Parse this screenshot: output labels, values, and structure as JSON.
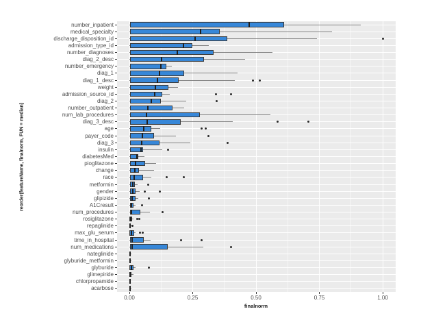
{
  "chart_data": {
    "type": "boxplot",
    "orientation": "horizontal",
    "xlabel": "finalnorm",
    "ylabel": "reorder(featureName, finalnorm, FUN = median)",
    "xlim": [
      -0.05,
      1.05
    ],
    "x_major_ticks": [
      0.0,
      0.25,
      0.5,
      0.75,
      1.0
    ],
    "x_tick_labels": [
      "0.00",
      "0.25",
      "0.50",
      "0.75",
      "1.00"
    ],
    "x_minor_ticks": [
      0.125,
      0.375,
      0.625,
      0.875
    ],
    "grid": "on",
    "legend": "none",
    "sort_order": "median descending (top to bottom)",
    "boxes": [
      {
        "name": "number_inpatient",
        "low": 0,
        "q1": 0.003,
        "median": 0.473,
        "q3": 0.611,
        "high": 0.913,
        "outliers": []
      },
      {
        "name": "medical_specialty",
        "low": 0,
        "q1": 0.003,
        "median": 0.281,
        "q3": 0.357,
        "high": 0.8,
        "outliers": []
      },
      {
        "name": "discharge_disposition_id",
        "low": 0,
        "q1": 0.003,
        "median": 0.259,
        "q3": 0.386,
        "high": 0.74,
        "outliers": [
          1.0
        ]
      },
      {
        "name": "admission_type_id",
        "low": 0,
        "q1": 0.003,
        "median": 0.214,
        "q3": 0.248,
        "high": 0.314,
        "outliers": []
      },
      {
        "name": "number_diagnoses",
        "low": 0,
        "q1": 0.003,
        "median": 0.189,
        "q3": 0.332,
        "high": 0.565,
        "outliers": []
      },
      {
        "name": "diag_2_desc",
        "low": 0,
        "q1": 0.003,
        "median": 0.127,
        "q3": 0.295,
        "high": 0.457,
        "outliers": []
      },
      {
        "name": "number_emergency",
        "low": 0,
        "q1": 0.003,
        "median": 0.123,
        "q3": 0.147,
        "high": 0.167,
        "outliers": []
      },
      {
        "name": "diag_1",
        "low": 0,
        "q1": 0.003,
        "median": 0.118,
        "q3": 0.216,
        "high": 0.428,
        "outliers": []
      },
      {
        "name": "diag_1_desc",
        "low": 0,
        "q1": 0.003,
        "median": 0.111,
        "q3": 0.195,
        "high": 0.417,
        "outliers": [
          0.487,
          0.514
        ]
      },
      {
        "name": "weight",
        "low": 0,
        "q1": 0.003,
        "median": 0.104,
        "q3": 0.155,
        "high": 0.192,
        "outliers": []
      },
      {
        "name": "admission_source_id",
        "low": 0,
        "q1": 0.003,
        "median": 0.099,
        "q3": 0.129,
        "high": 0.159,
        "outliers": [
          0.341,
          0.402
        ]
      },
      {
        "name": "diag_2",
        "low": 0,
        "q1": 0.003,
        "median": 0.086,
        "q3": 0.124,
        "high": 0.225,
        "outliers": [
          0.345
        ]
      },
      {
        "name": "number_outpatient",
        "low": 0,
        "q1": 0.003,
        "median": 0.073,
        "q3": 0.17,
        "high": 0.215,
        "outliers": []
      },
      {
        "name": "num_lab_procedures",
        "low": 0,
        "q1": 0.003,
        "median": 0.068,
        "q3": 0.278,
        "high": 0.557,
        "outliers": []
      },
      {
        "name": "diag_3_desc",
        "low": 0,
        "q1": 0.003,
        "median": 0.07,
        "q3": 0.203,
        "high": 0.408,
        "outliers": [
          0.584,
          0.708
        ]
      },
      {
        "name": "age",
        "low": 0,
        "q1": 0.003,
        "median": 0.057,
        "q3": 0.086,
        "high": 0.122,
        "outliers": [
          0.286,
          0.301
        ]
      },
      {
        "name": "payer_code",
        "low": 0,
        "q1": 0.003,
        "median": 0.051,
        "q3": 0.097,
        "high": 0.184,
        "outliers": [
          0.311
        ]
      },
      {
        "name": "diag_3",
        "low": 0,
        "q1": 0.003,
        "median": 0.049,
        "q3": 0.119,
        "high": 0.241,
        "outliers": [
          0.388
        ]
      },
      {
        "name": "insulin",
        "low": 0,
        "q1": 0.003,
        "median": 0.046,
        "q3": 0.054,
        "high": 0.13,
        "outliers": [
          0.154
        ]
      },
      {
        "name": "diabetesMed",
        "low": 0,
        "q1": 0.003,
        "median": 0.03,
        "q3": 0.035,
        "high": 0.06,
        "outliers": []
      },
      {
        "name": "pioglitazone",
        "low": 0,
        "q1": 0.003,
        "median": 0.025,
        "q3": 0.063,
        "high": 0.106,
        "outliers": []
      },
      {
        "name": "change",
        "low": 0,
        "q1": 0.003,
        "median": 0.022,
        "q3": 0.039,
        "high": 0.097,
        "outliers": []
      },
      {
        "name": "race",
        "low": 0,
        "q1": 0.003,
        "median": 0.019,
        "q3": 0.055,
        "high": 0.086,
        "outliers": [
          0.146,
          0.214
        ]
      },
      {
        "name": "metformin",
        "low": 0,
        "q1": 0.002,
        "median": 0.014,
        "q3": 0.022,
        "high": 0.032,
        "outliers": [
          0.073
        ]
      },
      {
        "name": "gender",
        "low": 0,
        "q1": 0.002,
        "median": 0.014,
        "q3": 0.024,
        "high": 0.041,
        "outliers": [
          0.062,
          0.119
        ]
      },
      {
        "name": "glipizide",
        "low": 0,
        "q1": 0.002,
        "median": 0.012,
        "q3": 0.025,
        "high": 0.035,
        "outliers": [
          0.076
        ]
      },
      {
        "name": "A1Cresult",
        "low": 0,
        "q1": 0.002,
        "median": 0.009,
        "q3": 0.015,
        "high": 0.025,
        "outliers": [
          0.049
        ]
      },
      {
        "name": "num_procedures",
        "low": 0,
        "q1": 0.002,
        "median": 0.008,
        "q3": 0.044,
        "high": 0.081,
        "outliers": [
          0.132
        ]
      },
      {
        "name": "rosiglitazone",
        "low": 0,
        "q1": 0.001,
        "median": 0.006,
        "q3": 0.012,
        "high": 0.016,
        "outliers": [
          0.031,
          0.04
        ]
      },
      {
        "name": "repaglinide",
        "low": 0,
        "q1": 0.001,
        "median": 0.003,
        "q3": 0.005,
        "high": 0.008,
        "outliers": [
          0.013
        ]
      },
      {
        "name": "max_glu_serum",
        "low": 0,
        "q1": 0.001,
        "median": 0.007,
        "q3": 0.019,
        "high": 0.025,
        "outliers": [
          0.043,
          0.054
        ]
      },
      {
        "name": "time_in_hospital",
        "low": 0,
        "q1": 0.002,
        "median": 0.012,
        "q3": 0.057,
        "high": 0.084,
        "outliers": [
          0.205,
          0.286
        ]
      },
      {
        "name": "num_medications",
        "low": 0,
        "q1": 0.004,
        "median": 0.012,
        "q3": 0.151,
        "high": 0.292,
        "outliers": [
          0.4
        ]
      },
      {
        "name": "nateglinide",
        "low": 0,
        "q1": 0.001,
        "median": 0.002,
        "q3": 0.004,
        "high": 0.007,
        "outliers": []
      },
      {
        "name": "glyburide_metformin",
        "low": 0,
        "q1": 0.001,
        "median": 0.002,
        "q3": 0.004,
        "high": 0.007,
        "outliers": []
      },
      {
        "name": "glyburide",
        "low": 0,
        "q1": 0.001,
        "median": 0.008,
        "q3": 0.017,
        "high": 0.023,
        "outliers": [
          0.076
        ]
      },
      {
        "name": "glimepiride",
        "low": 0,
        "q1": 0.001,
        "median": 0.004,
        "q3": 0.007,
        "high": 0.016,
        "outliers": []
      },
      {
        "name": "chlorpropamide",
        "low": 0,
        "q1": 0.001,
        "median": 0.002,
        "q3": 0.003,
        "high": 0.006,
        "outliers": []
      },
      {
        "name": "acarbose",
        "low": 0,
        "q1": 0.001,
        "median": 0.002,
        "q3": 0.004,
        "high": 0.008,
        "outliers": []
      }
    ]
  },
  "colors": {
    "box_fill": "#3787d8",
    "box_border": "#3a3a3a",
    "median_line": "#1f1f1f",
    "whisker": "#848484",
    "outlier": "#2b2b2b",
    "panel_background": "#ebebeb",
    "gridline": "#ffffff",
    "axis_text": "#4d4d4d",
    "axis_title": "#1a1a1a",
    "page_background": "#ffffff"
  }
}
